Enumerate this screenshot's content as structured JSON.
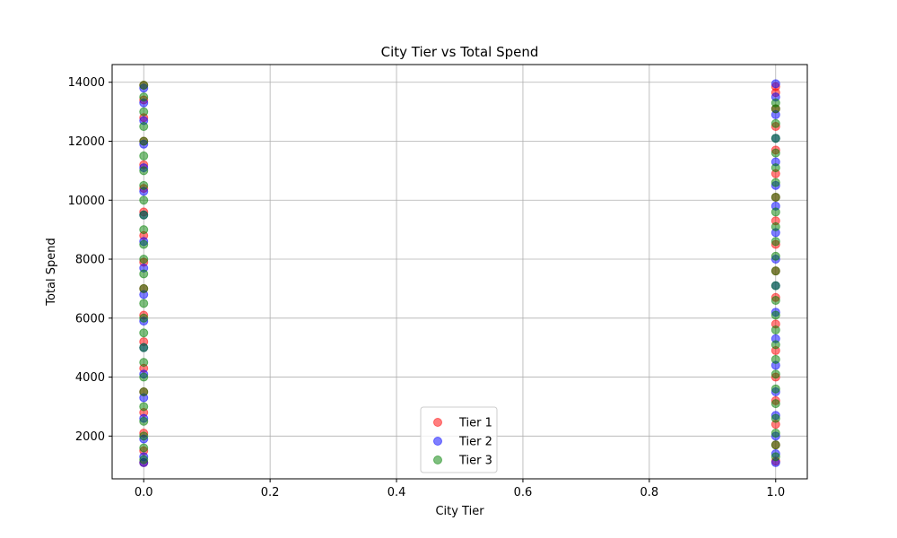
{
  "chart_data": {
    "type": "scatter",
    "title": "City Tier vs Total Spend",
    "xlabel": "City Tier",
    "ylabel": "Total Spend",
    "xlim": [
      -0.05,
      1.05
    ],
    "ylim": [
      550,
      14600
    ],
    "x_ticks": [
      0.0,
      0.2,
      0.4,
      0.6,
      0.8,
      1.0
    ],
    "x_tick_labels": [
      "0.0",
      "0.2",
      "0.4",
      "0.6",
      "0.8",
      "1.0"
    ],
    "y_ticks": [
      2000,
      4000,
      6000,
      8000,
      10000,
      12000,
      14000
    ],
    "y_tick_labels": [
      "2000",
      "4000",
      "6000",
      "8000",
      "10000",
      "12000",
      "14000"
    ],
    "grid": true,
    "legend_position": "bottom-center",
    "marker_alpha": 0.5,
    "series": [
      {
        "name": "Tier 1",
        "color": "#ff0000",
        "points": [
          [
            0,
            1100
          ],
          [
            0,
            1500
          ],
          [
            0,
            2100
          ],
          [
            0,
            2800
          ],
          [
            0,
            3500
          ],
          [
            0,
            4300
          ],
          [
            0,
            5200
          ],
          [
            0,
            6100
          ],
          [
            0,
            7000
          ],
          [
            0,
            7900
          ],
          [
            0,
            8800
          ],
          [
            0,
            9600
          ],
          [
            0,
            10400
          ],
          [
            0,
            11200
          ],
          [
            0,
            12000
          ],
          [
            0,
            12800
          ],
          [
            0,
            13400
          ],
          [
            0,
            13900
          ],
          [
            1,
            1150
          ],
          [
            1,
            1700
          ],
          [
            1,
            2400
          ],
          [
            1,
            3200
          ],
          [
            1,
            4000
          ],
          [
            1,
            4900
          ],
          [
            1,
            5800
          ],
          [
            1,
            6700
          ],
          [
            1,
            7600
          ],
          [
            1,
            8500
          ],
          [
            1,
            9300
          ],
          [
            1,
            10100
          ],
          [
            1,
            10900
          ],
          [
            1,
            11700
          ],
          [
            1,
            12500
          ],
          [
            1,
            13100
          ],
          [
            1,
            13650
          ],
          [
            1,
            13850
          ]
        ]
      },
      {
        "name": "Tier 2",
        "color": "#0000ff",
        "points": [
          [
            0,
            1100
          ],
          [
            0,
            1300
          ],
          [
            0,
            1900
          ],
          [
            0,
            2600
          ],
          [
            0,
            3300
          ],
          [
            0,
            4100
          ],
          [
            0,
            5000
          ],
          [
            0,
            5900
          ],
          [
            0,
            6800
          ],
          [
            0,
            7700
          ],
          [
            0,
            8600
          ],
          [
            0,
            9500
          ],
          [
            0,
            10300
          ],
          [
            0,
            11100
          ],
          [
            0,
            11900
          ],
          [
            0,
            12700
          ],
          [
            0,
            13300
          ],
          [
            0,
            13800
          ],
          [
            1,
            1100
          ],
          [
            1,
            1400
          ],
          [
            1,
            2000
          ],
          [
            1,
            2700
          ],
          [
            1,
            3500
          ],
          [
            1,
            4400
          ],
          [
            1,
            5300
          ],
          [
            1,
            6200
          ],
          [
            1,
            7100
          ],
          [
            1,
            8000
          ],
          [
            1,
            8900
          ],
          [
            1,
            9800
          ],
          [
            1,
            10500
          ],
          [
            1,
            11300
          ],
          [
            1,
            12100
          ],
          [
            1,
            12900
          ],
          [
            1,
            13500
          ],
          [
            1,
            13950
          ]
        ]
      },
      {
        "name": "Tier 3",
        "color": "#008000",
        "points": [
          [
            0,
            1200
          ],
          [
            0,
            1600
          ],
          [
            0,
            2000
          ],
          [
            0,
            2500
          ],
          [
            0,
            3000
          ],
          [
            0,
            3500
          ],
          [
            0,
            4000
          ],
          [
            0,
            4500
          ],
          [
            0,
            5000
          ],
          [
            0,
            5500
          ],
          [
            0,
            6000
          ],
          [
            0,
            6500
          ],
          [
            0,
            7000
          ],
          [
            0,
            7500
          ],
          [
            0,
            8000
          ],
          [
            0,
            8500
          ],
          [
            0,
            9000
          ],
          [
            0,
            9500
          ],
          [
            0,
            10000
          ],
          [
            0,
            10500
          ],
          [
            0,
            11000
          ],
          [
            0,
            11500
          ],
          [
            0,
            12000
          ],
          [
            0,
            12500
          ],
          [
            0,
            13000
          ],
          [
            0,
            13500
          ],
          [
            0,
            13900
          ],
          [
            1,
            1300
          ],
          [
            1,
            1700
          ],
          [
            1,
            2100
          ],
          [
            1,
            2600
          ],
          [
            1,
            3100
          ],
          [
            1,
            3600
          ],
          [
            1,
            4100
          ],
          [
            1,
            4600
          ],
          [
            1,
            5100
          ],
          [
            1,
            5600
          ],
          [
            1,
            6100
          ],
          [
            1,
            6600
          ],
          [
            1,
            7100
          ],
          [
            1,
            7600
          ],
          [
            1,
            8100
          ],
          [
            1,
            8600
          ],
          [
            1,
            9100
          ],
          [
            1,
            9600
          ],
          [
            1,
            10100
          ],
          [
            1,
            10600
          ],
          [
            1,
            11100
          ],
          [
            1,
            11600
          ],
          [
            1,
            12100
          ],
          [
            1,
            12600
          ],
          [
            1,
            13100
          ],
          [
            1,
            13300
          ]
        ]
      }
    ]
  }
}
